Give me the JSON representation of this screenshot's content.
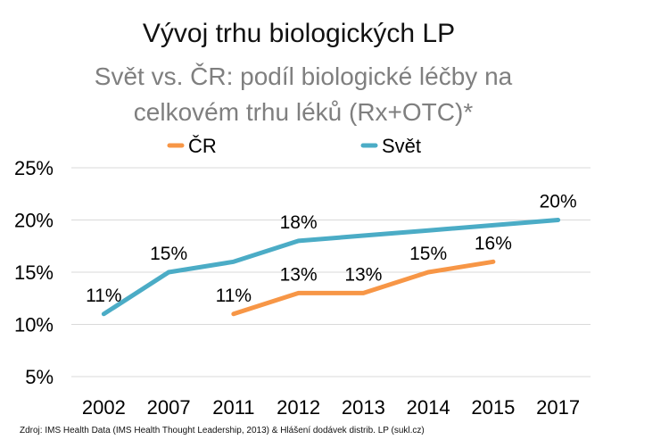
{
  "title": "Vývoj trhu biologických LP",
  "subtitle_line1": "Svět vs. ČR: podíl biologické léčby na",
  "subtitle_line2": "celkovém trhu léků (Rx+OTC)*",
  "source": "Zdroj: IMS Health Data (IMS Health Thought Leadership, 2013) & Hlášení dodávek distrib. LP (sukl.cz)",
  "chart_data": {
    "type": "line",
    "categories": [
      "2002",
      "2007",
      "2011",
      "2012",
      "2013",
      "2014",
      "2015",
      "2017"
    ],
    "ylim": [
      5,
      25
    ],
    "yticks": [
      "5%",
      "10%",
      "15%",
      "20%",
      "25%"
    ],
    "ytick_values": [
      5,
      10,
      15,
      20,
      25
    ],
    "grid": true,
    "legend_position": "top",
    "series": [
      {
        "name": "ČR",
        "color": "#f79646",
        "values": [
          null,
          null,
          11,
          13,
          13,
          15,
          16,
          null
        ],
        "labels": [
          null,
          null,
          "11%",
          "13%",
          "13%",
          "15%",
          "16%",
          null
        ]
      },
      {
        "name": "Svět",
        "color": "#4bacc6",
        "values": [
          11,
          15,
          16,
          18,
          18.5,
          19,
          19.5,
          20
        ],
        "labels": [
          "11%",
          "15%",
          null,
          "18%",
          null,
          null,
          null,
          "20%"
        ]
      }
    ]
  }
}
